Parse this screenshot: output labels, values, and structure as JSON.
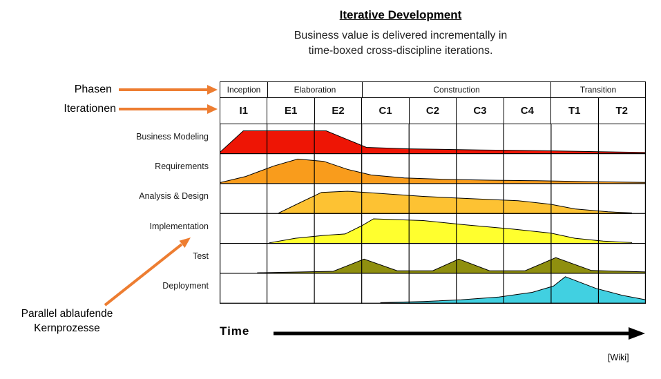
{
  "header": {
    "title": "Iterative Development",
    "subtitle_line1": "Business value is delivered incrementally in",
    "subtitle_line2": "time-boxed cross-discipline iterations."
  },
  "annotations": {
    "phases_label": "Phasen",
    "iterations_label": "Iterationen",
    "parallel_line1": "Parallel ablaufende",
    "parallel_line2": "Kernprozesse",
    "time_label": "Time",
    "source_label": "[Wiki]"
  },
  "colors": {
    "annotation_arrow": "#ed7d31",
    "time_arrow": "#000000",
    "grid_line": "#000000"
  },
  "chart_data": {
    "type": "area",
    "title": "Iterative Development",
    "x_axis_label": "Time",
    "phases": [
      {
        "label": "Inception",
        "span": 1
      },
      {
        "label": "Elaboration",
        "span": 2
      },
      {
        "label": "Construction",
        "span": 4
      },
      {
        "label": "Transition",
        "span": 2
      }
    ],
    "iterations": [
      "I1",
      "E1",
      "E2",
      "C1",
      "C2",
      "C3",
      "C4",
      "T1",
      "T2"
    ],
    "disciplines": [
      {
        "label": "Business Modeling",
        "color": "#ee1505",
        "points": [
          [
            0,
            0.04
          ],
          [
            0.5,
            0.8
          ],
          [
            2.25,
            0.8
          ],
          [
            3.1,
            0.22
          ],
          [
            4.0,
            0.17
          ],
          [
            5.5,
            0.13
          ],
          [
            7.0,
            0.1
          ],
          [
            8.0,
            0.07
          ],
          [
            9,
            0.04
          ]
        ]
      },
      {
        "label": "Requirements",
        "color": "#f99c1c",
        "points": [
          [
            0,
            0.03
          ],
          [
            0.55,
            0.25
          ],
          [
            1.15,
            0.62
          ],
          [
            1.65,
            0.86
          ],
          [
            2.2,
            0.78
          ],
          [
            2.7,
            0.5
          ],
          [
            3.2,
            0.3
          ],
          [
            3.9,
            0.2
          ],
          [
            4.7,
            0.15
          ],
          [
            5.7,
            0.12
          ],
          [
            6.7,
            0.1
          ],
          [
            7.7,
            0.07
          ],
          [
            9,
            0.04
          ]
        ]
      },
      {
        "label": "Analysis & Design",
        "color": "#fdc233",
        "points": [
          [
            1.25,
            0.02
          ],
          [
            1.7,
            0.38
          ],
          [
            2.15,
            0.74
          ],
          [
            2.7,
            0.78
          ],
          [
            3.4,
            0.7
          ],
          [
            4.3,
            0.6
          ],
          [
            5.3,
            0.52
          ],
          [
            6.3,
            0.45
          ],
          [
            7.0,
            0.32
          ],
          [
            7.5,
            0.16
          ],
          [
            8.2,
            0.06
          ],
          [
            8.7,
            0.02
          ]
        ]
      },
      {
        "label": "Implementation",
        "color": "#ffff2e",
        "points": [
          [
            1.05,
            0.02
          ],
          [
            1.6,
            0.18
          ],
          [
            2.2,
            0.28
          ],
          [
            2.65,
            0.33
          ],
          [
            3.0,
            0.62
          ],
          [
            3.25,
            0.86
          ],
          [
            4.3,
            0.8
          ],
          [
            5.2,
            0.65
          ],
          [
            6.2,
            0.5
          ],
          [
            7.0,
            0.36
          ],
          [
            7.5,
            0.18
          ],
          [
            8.1,
            0.08
          ],
          [
            8.7,
            0.03
          ]
        ]
      },
      {
        "label": "Test",
        "color": "#8f8f0f",
        "points": [
          [
            0.8,
            0.02
          ],
          [
            2.4,
            0.07
          ],
          [
            3.05,
            0.5
          ],
          [
            3.75,
            0.09
          ],
          [
            4.5,
            0.09
          ],
          [
            5.05,
            0.5
          ],
          [
            5.7,
            0.09
          ],
          [
            6.45,
            0.09
          ],
          [
            7.1,
            0.55
          ],
          [
            7.85,
            0.1
          ],
          [
            9,
            0.05
          ]
        ]
      },
      {
        "label": "Deployment",
        "color": "#41d0e1",
        "points": [
          [
            3.4,
            0.02
          ],
          [
            4.3,
            0.06
          ],
          [
            5.1,
            0.12
          ],
          [
            5.9,
            0.22
          ],
          [
            6.6,
            0.38
          ],
          [
            7.05,
            0.6
          ],
          [
            7.3,
            0.93
          ],
          [
            7.95,
            0.52
          ],
          [
            8.5,
            0.28
          ],
          [
            9,
            0.12
          ]
        ]
      }
    ]
  }
}
